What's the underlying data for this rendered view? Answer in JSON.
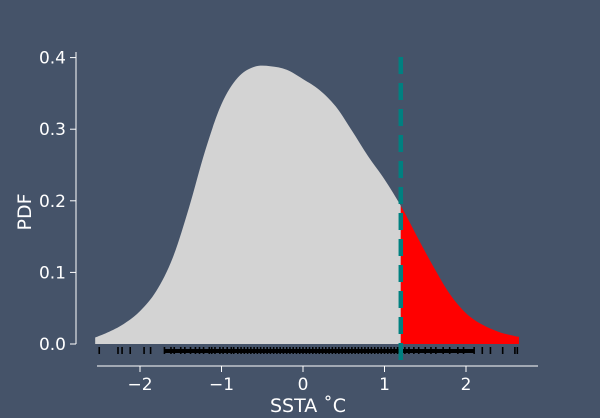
{
  "chart_data": {
    "type": "area",
    "xlabel": "SSTA ˚C",
    "ylabel": "PDF",
    "xlim": [
      -2.8,
      2.9
    ],
    "ylim": [
      -0.03,
      0.41
    ],
    "xticks": [
      -2,
      -1,
      0,
      1,
      2
    ],
    "xtick_labels": [
      "−2",
      "−1",
      "0",
      "1",
      "2"
    ],
    "yticks": [
      0.0,
      0.1,
      0.2,
      0.3,
      0.4
    ],
    "ytick_labels": [
      "0.0",
      "0.1",
      "0.2",
      "0.3",
      "0.4"
    ],
    "grid": false,
    "background_color": "#455369",
    "density": {
      "x": [
        -2.55,
        -2.4,
        -2.2,
        -2.0,
        -1.8,
        -1.6,
        -1.4,
        -1.2,
        -1.0,
        -0.8,
        -0.6,
        -0.4,
        -0.2,
        0.0,
        0.2,
        0.4,
        0.6,
        0.8,
        1.0,
        1.2,
        1.4,
        1.6,
        1.8,
        2.0,
        2.2,
        2.4,
        2.6,
        2.65
      ],
      "y": [
        0.009,
        0.016,
        0.028,
        0.046,
        0.074,
        0.12,
        0.19,
        0.27,
        0.335,
        0.372,
        0.387,
        0.388,
        0.383,
        0.37,
        0.355,
        0.332,
        0.298,
        0.262,
        0.23,
        0.193,
        0.15,
        0.108,
        0.07,
        0.043,
        0.027,
        0.017,
        0.011,
        0.01
      ],
      "fill_color": "#d3d3d3"
    },
    "tail": {
      "threshold": 1.2,
      "fill_color": "#ff0000"
    },
    "threshold_line": {
      "x": 1.2,
      "color": "#008080",
      "style": "dashed"
    },
    "rug": {
      "color": "#000000",
      "x": [
        -2.5,
        -2.27,
        -2.22,
        -2.12,
        -1.95,
        -1.87,
        -1.7,
        -1.62,
        -1.58,
        -1.5,
        -1.45,
        -1.38,
        -1.32,
        -1.27,
        -1.22,
        -1.15,
        -1.12,
        -1.08,
        -1.02,
        -0.98,
        -0.93,
        -0.88,
        -0.85,
        -0.8,
        -0.76,
        -0.72,
        -0.68,
        -0.64,
        -0.6,
        -0.56,
        -0.52,
        -0.48,
        -0.44,
        -0.4,
        -0.36,
        -0.32,
        -0.28,
        -0.24,
        -0.2,
        -0.16,
        -0.12,
        -0.08,
        -0.04,
        0.0,
        0.04,
        0.08,
        0.12,
        0.16,
        0.2,
        0.24,
        0.28,
        0.32,
        0.36,
        0.4,
        0.44,
        0.48,
        0.52,
        0.56,
        0.6,
        0.64,
        0.68,
        0.72,
        0.76,
        0.8,
        0.84,
        0.88,
        0.92,
        0.96,
        1.0,
        1.04,
        1.08,
        1.12,
        1.16,
        1.2,
        1.25,
        1.3,
        1.36,
        1.42,
        1.5,
        1.57,
        1.63,
        1.72,
        1.8,
        1.9,
        1.97,
        2.1,
        2.2,
        2.3,
        2.45,
        2.6,
        2.63
      ]
    }
  }
}
